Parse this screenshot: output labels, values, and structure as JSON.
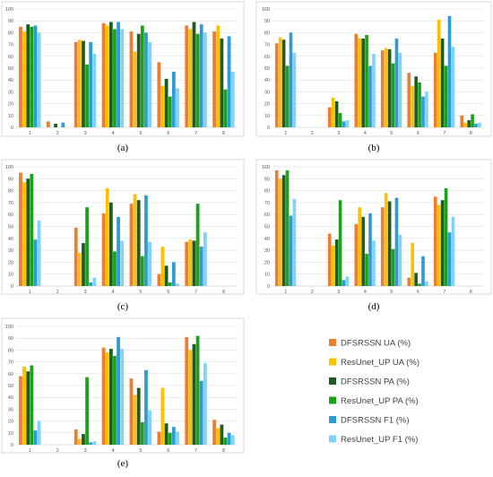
{
  "chart_data": {
    "type": "bar",
    "series_names": [
      "DFSRSSN UA (%)",
      "ResUnet_UP UA (%)",
      "DFSRSSN PA (%)",
      "ResUnet_UP PA (%)",
      "DFSRSSN F1 (%)",
      "ResUnet_UP F1 (%)"
    ],
    "series_colors": [
      "#ed7d31",
      "#ffc000",
      "#1e5c1e",
      "#1aa31a",
      "#2e9bd6",
      "#7fd3f7"
    ],
    "categories": [
      "1",
      "2",
      "3",
      "4",
      "5",
      "6",
      "7",
      "8"
    ],
    "ylim": [
      0,
      100
    ],
    "yticks": [
      "0",
      "10",
      "20",
      "30",
      "40",
      "50",
      "60",
      "70",
      "80",
      "90",
      "100"
    ],
    "panels": [
      {
        "label": "(a)",
        "series": [
          {
            "name": "DFSRSSN UA (%)",
            "values": [
              85,
              5,
              72,
              88,
              81,
              55,
              86,
              81
            ]
          },
          {
            "name": "ResUnet_UP UA (%)",
            "values": [
              81,
              0,
              74,
              86,
              64,
              35,
              83,
              86
            ]
          },
          {
            "name": "DFSRSSN PA (%)",
            "values": [
              87,
              3,
              73,
              89,
              79,
              41,
              89,
              75
            ]
          },
          {
            "name": "ResUnet_UP PA (%)",
            "values": [
              85,
              0,
              53,
              83,
              86,
              26,
              79,
              32
            ]
          },
          {
            "name": "DFSRSSN F1 (%)",
            "values": [
              86,
              4,
              72,
              89,
              80,
              47,
              87,
              77
            ]
          },
          {
            "name": "ResUnet_UP F1 (%)",
            "values": [
              80,
              0,
              62,
              83,
              72,
              33,
              80,
              47
            ]
          }
        ]
      },
      {
        "label": "(b)",
        "series": [
          {
            "name": "DFSRSSN UA (%)",
            "values": [
              71,
              0,
              17,
              79,
              65,
              46,
              63,
              10
            ]
          },
          {
            "name": "ResUnet_UP UA (%)",
            "values": [
              76,
              0,
              25,
              75,
              67,
              35,
              91,
              4
            ]
          },
          {
            "name": "DFSRSSN PA (%)",
            "values": [
              74,
              0,
              22,
              75,
              66,
              43,
              75,
              6
            ]
          },
          {
            "name": "ResUnet_UP PA (%)",
            "values": [
              52,
              0,
              12,
              78,
              54,
              38,
              52,
              11
            ]
          },
          {
            "name": "DFSRSSN F1 (%)",
            "values": [
              80,
              0,
              5,
              52,
              75,
              26,
              94,
              3
            ]
          },
          {
            "name": "ResUnet_UP F1 (%)",
            "values": [
              63,
              0,
              6,
              62,
              63,
              30,
              68,
              4
            ]
          }
        ]
      },
      {
        "label": "(c)",
        "series": [
          {
            "name": "DFSRSSN UA (%)",
            "values": [
              95,
              0,
              49,
              61,
              69,
              10,
              37,
              0
            ]
          },
          {
            "name": "ResUnet_UP UA (%)",
            "values": [
              87,
              0,
              28,
              82,
              77,
              33,
              39,
              0
            ]
          },
          {
            "name": "DFSRSSN PA (%)",
            "values": [
              90,
              0,
              36,
              70,
              72,
              17,
              38,
              0
            ]
          },
          {
            "name": "ResUnet_UP PA (%)",
            "values": [
              94,
              0,
              66,
              29,
              25,
              3,
              69,
              0
            ]
          },
          {
            "name": "DFSRSSN F1 (%)",
            "values": [
              39,
              0,
              3,
              58,
              76,
              20,
              33,
              0
            ]
          },
          {
            "name": "ResUnet_UP F1 (%)",
            "values": [
              55,
              0,
              7,
              38,
              37,
              2,
              45,
              0
            ]
          }
        ]
      },
      {
        "label": "(d)",
        "series": [
          {
            "name": "DFSRSSN UA (%)",
            "values": [
              97,
              0,
              44,
              52,
              66,
              7,
              75,
              0
            ]
          },
          {
            "name": "ResUnet_UP UA (%)",
            "values": [
              90,
              0,
              34,
              66,
              78,
              36,
              68,
              0
            ]
          },
          {
            "name": "DFSRSSN PA (%)",
            "values": [
              93,
              0,
              39,
              58,
              71,
              11,
              72,
              0
            ]
          },
          {
            "name": "ResUnet_UP PA (%)",
            "values": [
              97,
              0,
              72,
              27,
              31,
              2,
              82,
              0
            ]
          },
          {
            "name": "DFSRSSN F1 (%)",
            "values": [
              59,
              0,
              5,
              61,
              74,
              25,
              45,
              0
            ]
          },
          {
            "name": "ResUnet_UP F1 (%)",
            "values": [
              73,
              0,
              8,
              38,
              43,
              4,
              58,
              0
            ]
          }
        ]
      },
      {
        "label": "(e)",
        "series": [
          {
            "name": "DFSRSSN UA (%)",
            "values": [
              58,
              0,
              13,
              82,
              56,
              11,
              91,
              21
            ]
          },
          {
            "name": "ResUnet_UP UA (%)",
            "values": [
              66,
              0,
              5,
              78,
              42,
              48,
              80,
              14
            ]
          },
          {
            "name": "DFSRSSN PA (%)",
            "values": [
              62,
              0,
              9,
              81,
              48,
              18,
              85,
              17
            ]
          },
          {
            "name": "ResUnet_UP PA (%)",
            "values": [
              67,
              0,
              57,
              75,
              19,
              10,
              92,
              6
            ]
          },
          {
            "name": "DFSRSSN F1 (%)",
            "values": [
              12,
              0,
              2,
              91,
              63,
              15,
              54,
              10
            ]
          },
          {
            "name": "ResUnet_UP F1 (%)",
            "values": [
              20,
              0,
              3,
              81,
              29,
              11,
              69,
              8
            ]
          }
        ]
      }
    ]
  }
}
